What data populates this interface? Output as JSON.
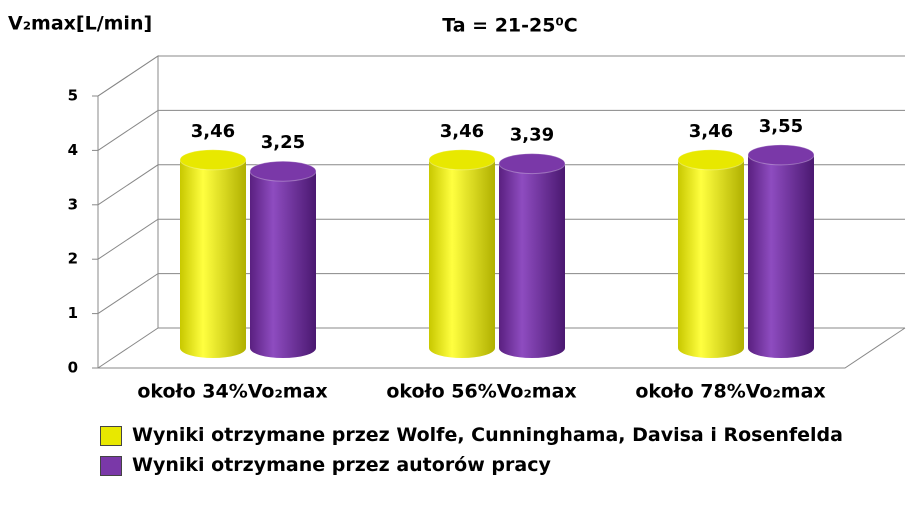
{
  "chart_data": {
    "type": "bar3d",
    "title": "Ta = 21-25⁰C",
    "y_label": "V₂max[L/min]",
    "categories": [
      "około 34%Vo₂max",
      "około 56%Vo₂max",
      "około 78%Vo₂max"
    ],
    "series": [
      {
        "name": "Wyniki otrzymane przez Wolfe, Cunninghama, Davisa i Rosenfelda",
        "color": "#e8e800",
        "values": [
          3.46,
          3.46,
          3.46
        ],
        "value_labels": [
          "3,46",
          "3,46",
          "3,46"
        ]
      },
      {
        "name": "Wyniki otrzymane przez autorów pracy",
        "color": "#7a38a8",
        "values": [
          3.25,
          3.39,
          3.55
        ],
        "value_labels": [
          "3,25",
          "3,39",
          "3,55"
        ]
      }
    ],
    "ylim": [
      0,
      5
    ],
    "yticks": [
      0,
      1,
      2,
      3,
      4,
      5
    ],
    "grid": true
  }
}
